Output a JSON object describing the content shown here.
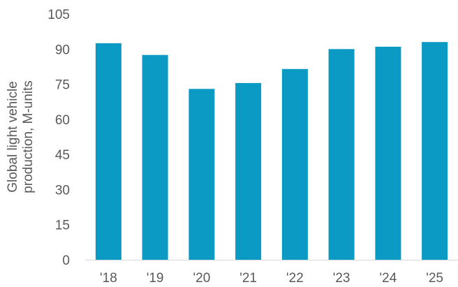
{
  "chart_data": {
    "type": "bar",
    "title": "",
    "xlabel": "",
    "ylabel_lines": [
      "Global light vehicle",
      "production, M-units"
    ],
    "categories": [
      "'18",
      "'19",
      "'20",
      "'21",
      "'22",
      "'23",
      "'24",
      "'25"
    ],
    "values": [
      92.5,
      87.5,
      73,
      75.5,
      81.5,
      90,
      91,
      93
    ],
    "ylim": [
      0,
      105
    ],
    "yticks": [
      "0",
      "15",
      "30",
      "45",
      "60",
      "75",
      "90",
      "105"
    ],
    "grid": false,
    "legend": "none",
    "bar_color": "#0b9ac4"
  }
}
